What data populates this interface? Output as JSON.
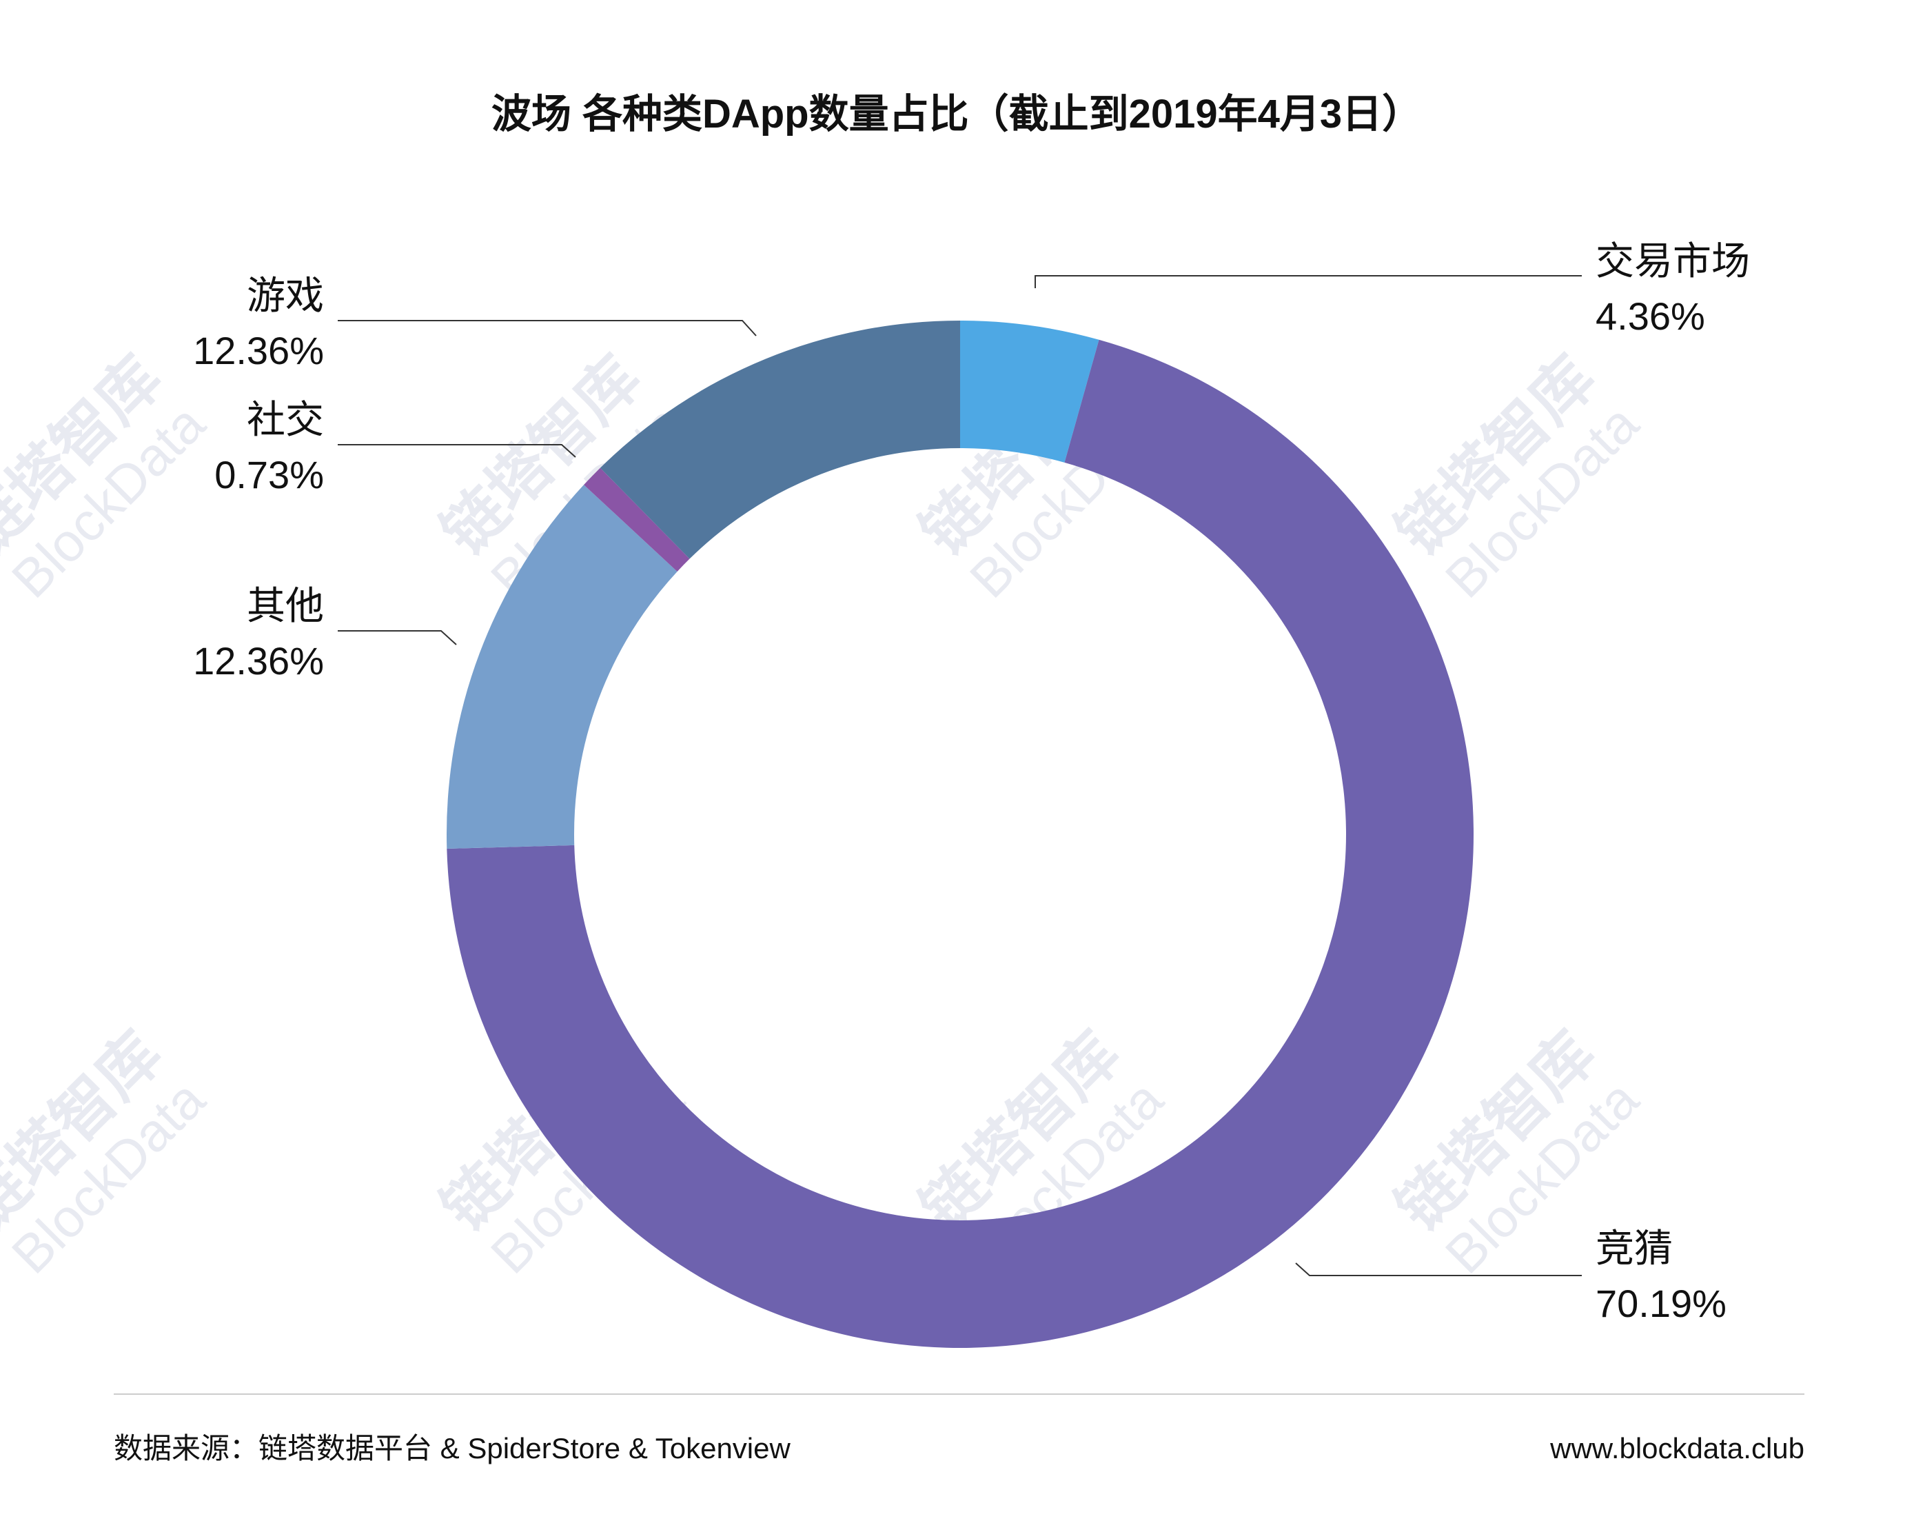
{
  "chart_data": {
    "type": "pie",
    "style": "donut",
    "title": "波场 各种类DApp数量占比（截止到2019年4月3日）",
    "slices": [
      {
        "name": "交易市场",
        "value": 4.36,
        "label": "4.36%",
        "color": "#4ea8e4"
      },
      {
        "name": "竞猜",
        "value": 70.19,
        "label": "70.19%",
        "color": "#6e62ae"
      },
      {
        "name": "其他",
        "value": 12.36,
        "label": "12.36%",
        "color": "#779fcc"
      },
      {
        "name": "社交",
        "value": 0.73,
        "label": "0.73%",
        "color": "#8a55a6"
      },
      {
        "name": "游戏",
        "value": 12.36,
        "label": "12.36%",
        "color": "#52779d"
      }
    ]
  },
  "footer": {
    "source": "数据来源：链塔数据平台 & SpiderStore & Tokenview",
    "website": "www.blockdata.club"
  },
  "watermark": {
    "text_cn": "链塔智库",
    "text_en": "BlockData"
  },
  "colors": {
    "background": "#ffffff",
    "leader_line": "#333333",
    "divider": "#cccccc"
  }
}
